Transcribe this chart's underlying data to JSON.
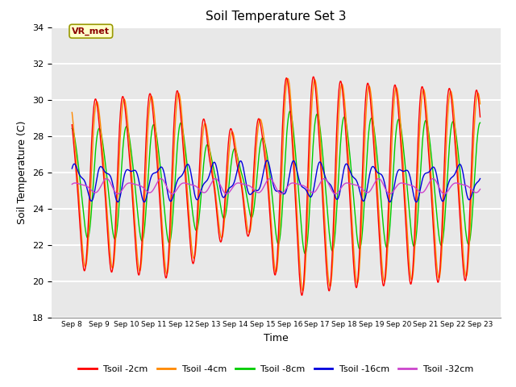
{
  "title": "Soil Temperature Set 3",
  "xlabel": "Time",
  "ylabel": "Soil Temperature (C)",
  "ylim": [
    18,
    34
  ],
  "xtick_labels": [
    "Sep 8",
    "Sep 9",
    "Sep 10",
    "Sep 11",
    "Sep 12",
    "Sep 13",
    "Sep 14",
    "Sep 15",
    "Sep 16",
    "Sep 17",
    "Sep 18",
    "Sep 19",
    "Sep 20",
    "Sep 21",
    "Sep 22",
    "Sep 23"
  ],
  "legend_labels": [
    "Tsoil -2cm",
    "Tsoil -4cm",
    "Tsoil -8cm",
    "Tsoil -16cm",
    "Tsoil -32cm"
  ],
  "line_colors": [
    "#ff0000",
    "#ff8800",
    "#00cc00",
    "#0000dd",
    "#cc44cc"
  ],
  "annotation_text": "VR_met",
  "bg_color": "#e8e8e8",
  "grid_color": "#ffffff",
  "period_hours": 24,
  "n_points": 3600,
  "total_hours": 360
}
